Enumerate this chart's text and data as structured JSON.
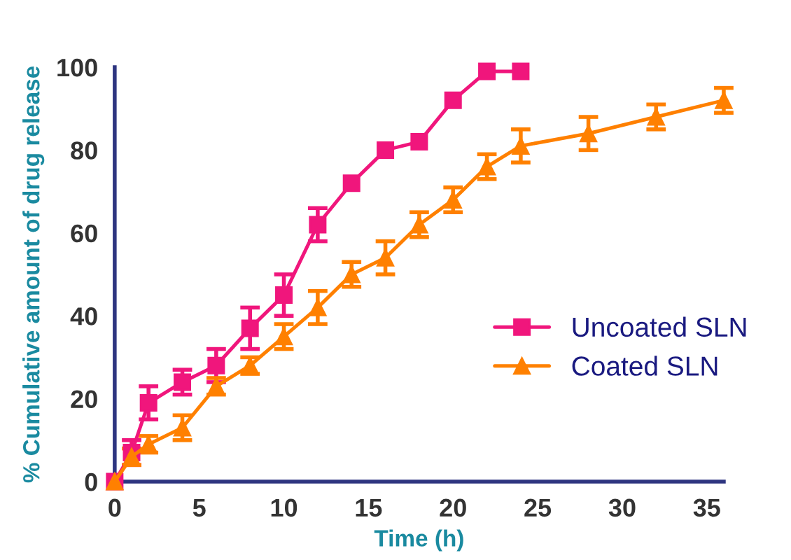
{
  "chart_data": {
    "type": "line",
    "xlabel": "Time (h)",
    "ylabel": "% Cumulative amount of drug release",
    "xlim": [
      0,
      36
    ],
    "xticks": [
      0,
      5,
      10,
      15,
      20,
      25,
      30,
      35
    ],
    "ylim": [
      0,
      100
    ],
    "yticks": [
      0,
      20,
      40,
      60,
      80,
      100
    ],
    "grid": false,
    "legend": "right",
    "series": [
      {
        "name": "Uncoated SLN",
        "color": "#f0167c",
        "marker": "square",
        "x": [
          0,
          1,
          2,
          4,
          6,
          8,
          10,
          12,
          14,
          16,
          18,
          20,
          22,
          24
        ],
        "values": [
          0,
          7,
          19,
          24,
          28,
          37,
          45,
          62,
          72,
          80,
          82,
          92,
          99,
          99
        ],
        "errors": [
          null,
          3,
          4,
          3,
          4,
          5,
          5,
          4,
          null,
          null,
          null,
          null,
          null,
          null
        ]
      },
      {
        "name": "Coated SLN",
        "color": "#ff8000",
        "marker": "triangle",
        "x": [
          0,
          1,
          2,
          4,
          6,
          8,
          10,
          12,
          14,
          16,
          18,
          20,
          22,
          24,
          28,
          32,
          36
        ],
        "values": [
          0,
          6,
          9,
          13,
          23,
          28,
          35,
          42,
          50,
          54,
          62,
          68,
          76,
          81,
          84,
          88,
          92
        ],
        "errors": [
          null,
          2,
          2,
          3,
          2,
          2,
          3,
          4,
          3,
          4,
          3,
          3,
          3,
          4,
          4,
          3,
          3
        ]
      }
    ]
  }
}
